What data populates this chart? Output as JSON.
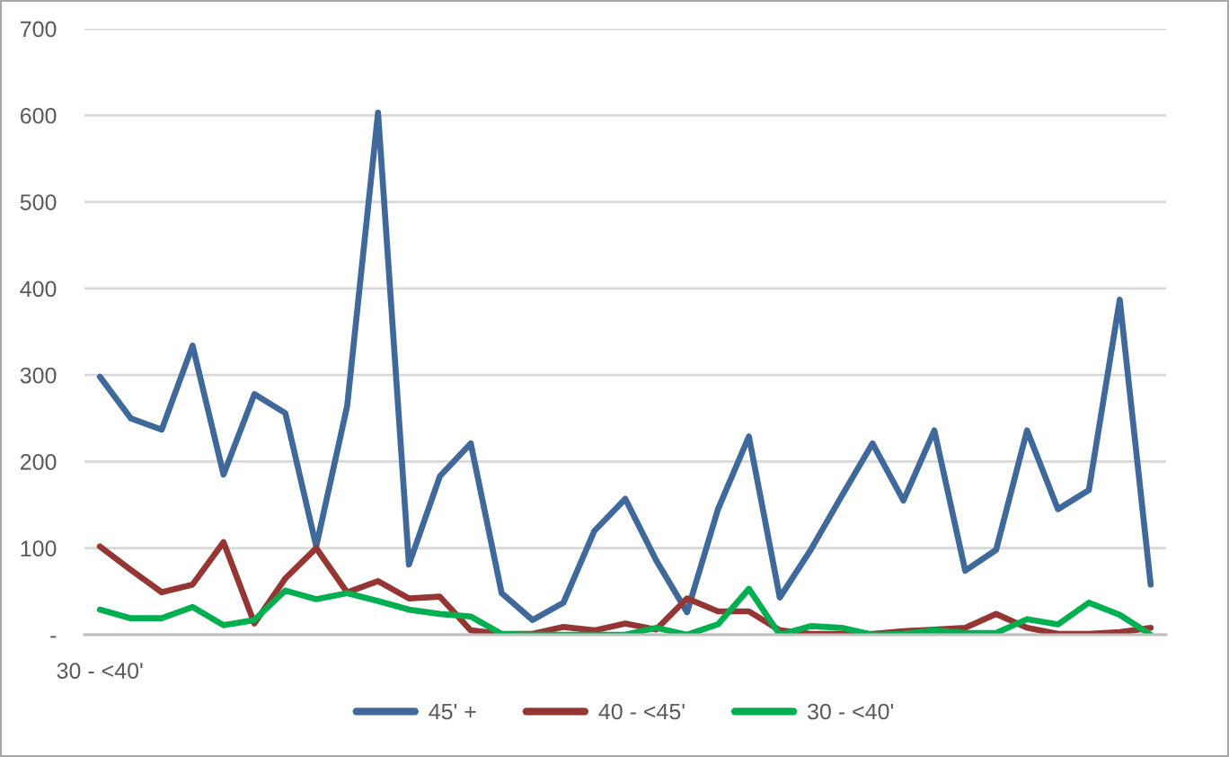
{
  "chart_data": {
    "type": "line",
    "categories": [
      "30 - <40'",
      null,
      null,
      null,
      null,
      null,
      null,
      null,
      null,
      null,
      null,
      null,
      null,
      null,
      null,
      null,
      null,
      null,
      null,
      null,
      null,
      null,
      null,
      null,
      null,
      null,
      null,
      null,
      null,
      null,
      null,
      null,
      null,
      null,
      null
    ],
    "series": [
      {
        "name": "45' +",
        "color": "#3f689b",
        "values": [
          298,
          250,
          237,
          334,
          185,
          278,
          256,
          102,
          264,
          603,
          81,
          183,
          221,
          48,
          17,
          37,
          120,
          157,
          86,
          26,
          145,
          229,
          43,
          98,
          160,
          221,
          155,
          236,
          74,
          98,
          236,
          145,
          167,
          387,
          58
        ]
      },
      {
        "name": "40 - <45'",
        "color": "#963634",
        "values": [
          102,
          75,
          49,
          58,
          107,
          13,
          65,
          100,
          49,
          62,
          42,
          44,
          5,
          1,
          1,
          9,
          5,
          13,
          6,
          42,
          27,
          27,
          5,
          1,
          1,
          1,
          4,
          6,
          8,
          24,
          8,
          1,
          1,
          3,
          8
        ]
      },
      {
        "name": "30 - <40'",
        "color": "#00b050",
        "values": [
          29,
          19,
          19,
          32,
          11,
          17,
          51,
          41,
          48,
          39,
          29,
          24,
          21,
          1,
          0,
          0,
          0,
          0,
          8,
          0,
          12,
          53,
          0,
          10,
          8,
          0,
          1,
          5,
          2,
          2,
          18,
          12,
          37,
          23,
          0
        ]
      }
    ],
    "ylim": [
      0,
      700
    ],
    "yticks": [
      {
        "value": 0,
        "label": "-"
      },
      100,
      200,
      300,
      400,
      500,
      600,
      700
    ],
    "grid": "y",
    "legend": "bottom",
    "line_style": "solid"
  }
}
